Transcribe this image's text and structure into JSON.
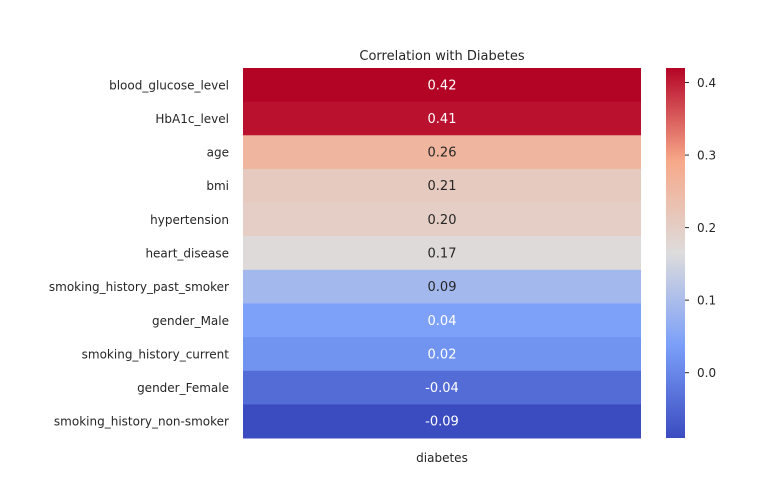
{
  "chart_data": {
    "type": "heatmap",
    "title": "Correlation with Diabetes",
    "colormap": "coolwarm",
    "columns": [
      "diabetes"
    ],
    "rows": [
      "blood_glucose_level",
      "HbA1c_level",
      "age",
      "bmi",
      "hypertension",
      "heart_disease",
      "smoking_history_past_smoker",
      "gender_Male",
      "smoking_history_current",
      "gender_Female",
      "smoking_history_non-smoker"
    ],
    "values": [
      0.42,
      0.41,
      0.26,
      0.21,
      0.2,
      0.17,
      0.09,
      0.04,
      0.02,
      -0.04,
      -0.09
    ],
    "value_labels": [
      "0.42",
      "0.41",
      "0.26",
      "0.21",
      "0.20",
      "0.17",
      "0.09",
      "0.04",
      "0.02",
      "-0.04",
      "-0.09"
    ],
    "colorbar": {
      "range": [
        -0.09,
        0.42
      ],
      "ticks": [
        0.0,
        0.1,
        0.2,
        0.3,
        0.4
      ],
      "tick_labels": [
        "0.0",
        "0.1",
        "0.2",
        "0.3",
        "0.4"
      ]
    }
  }
}
